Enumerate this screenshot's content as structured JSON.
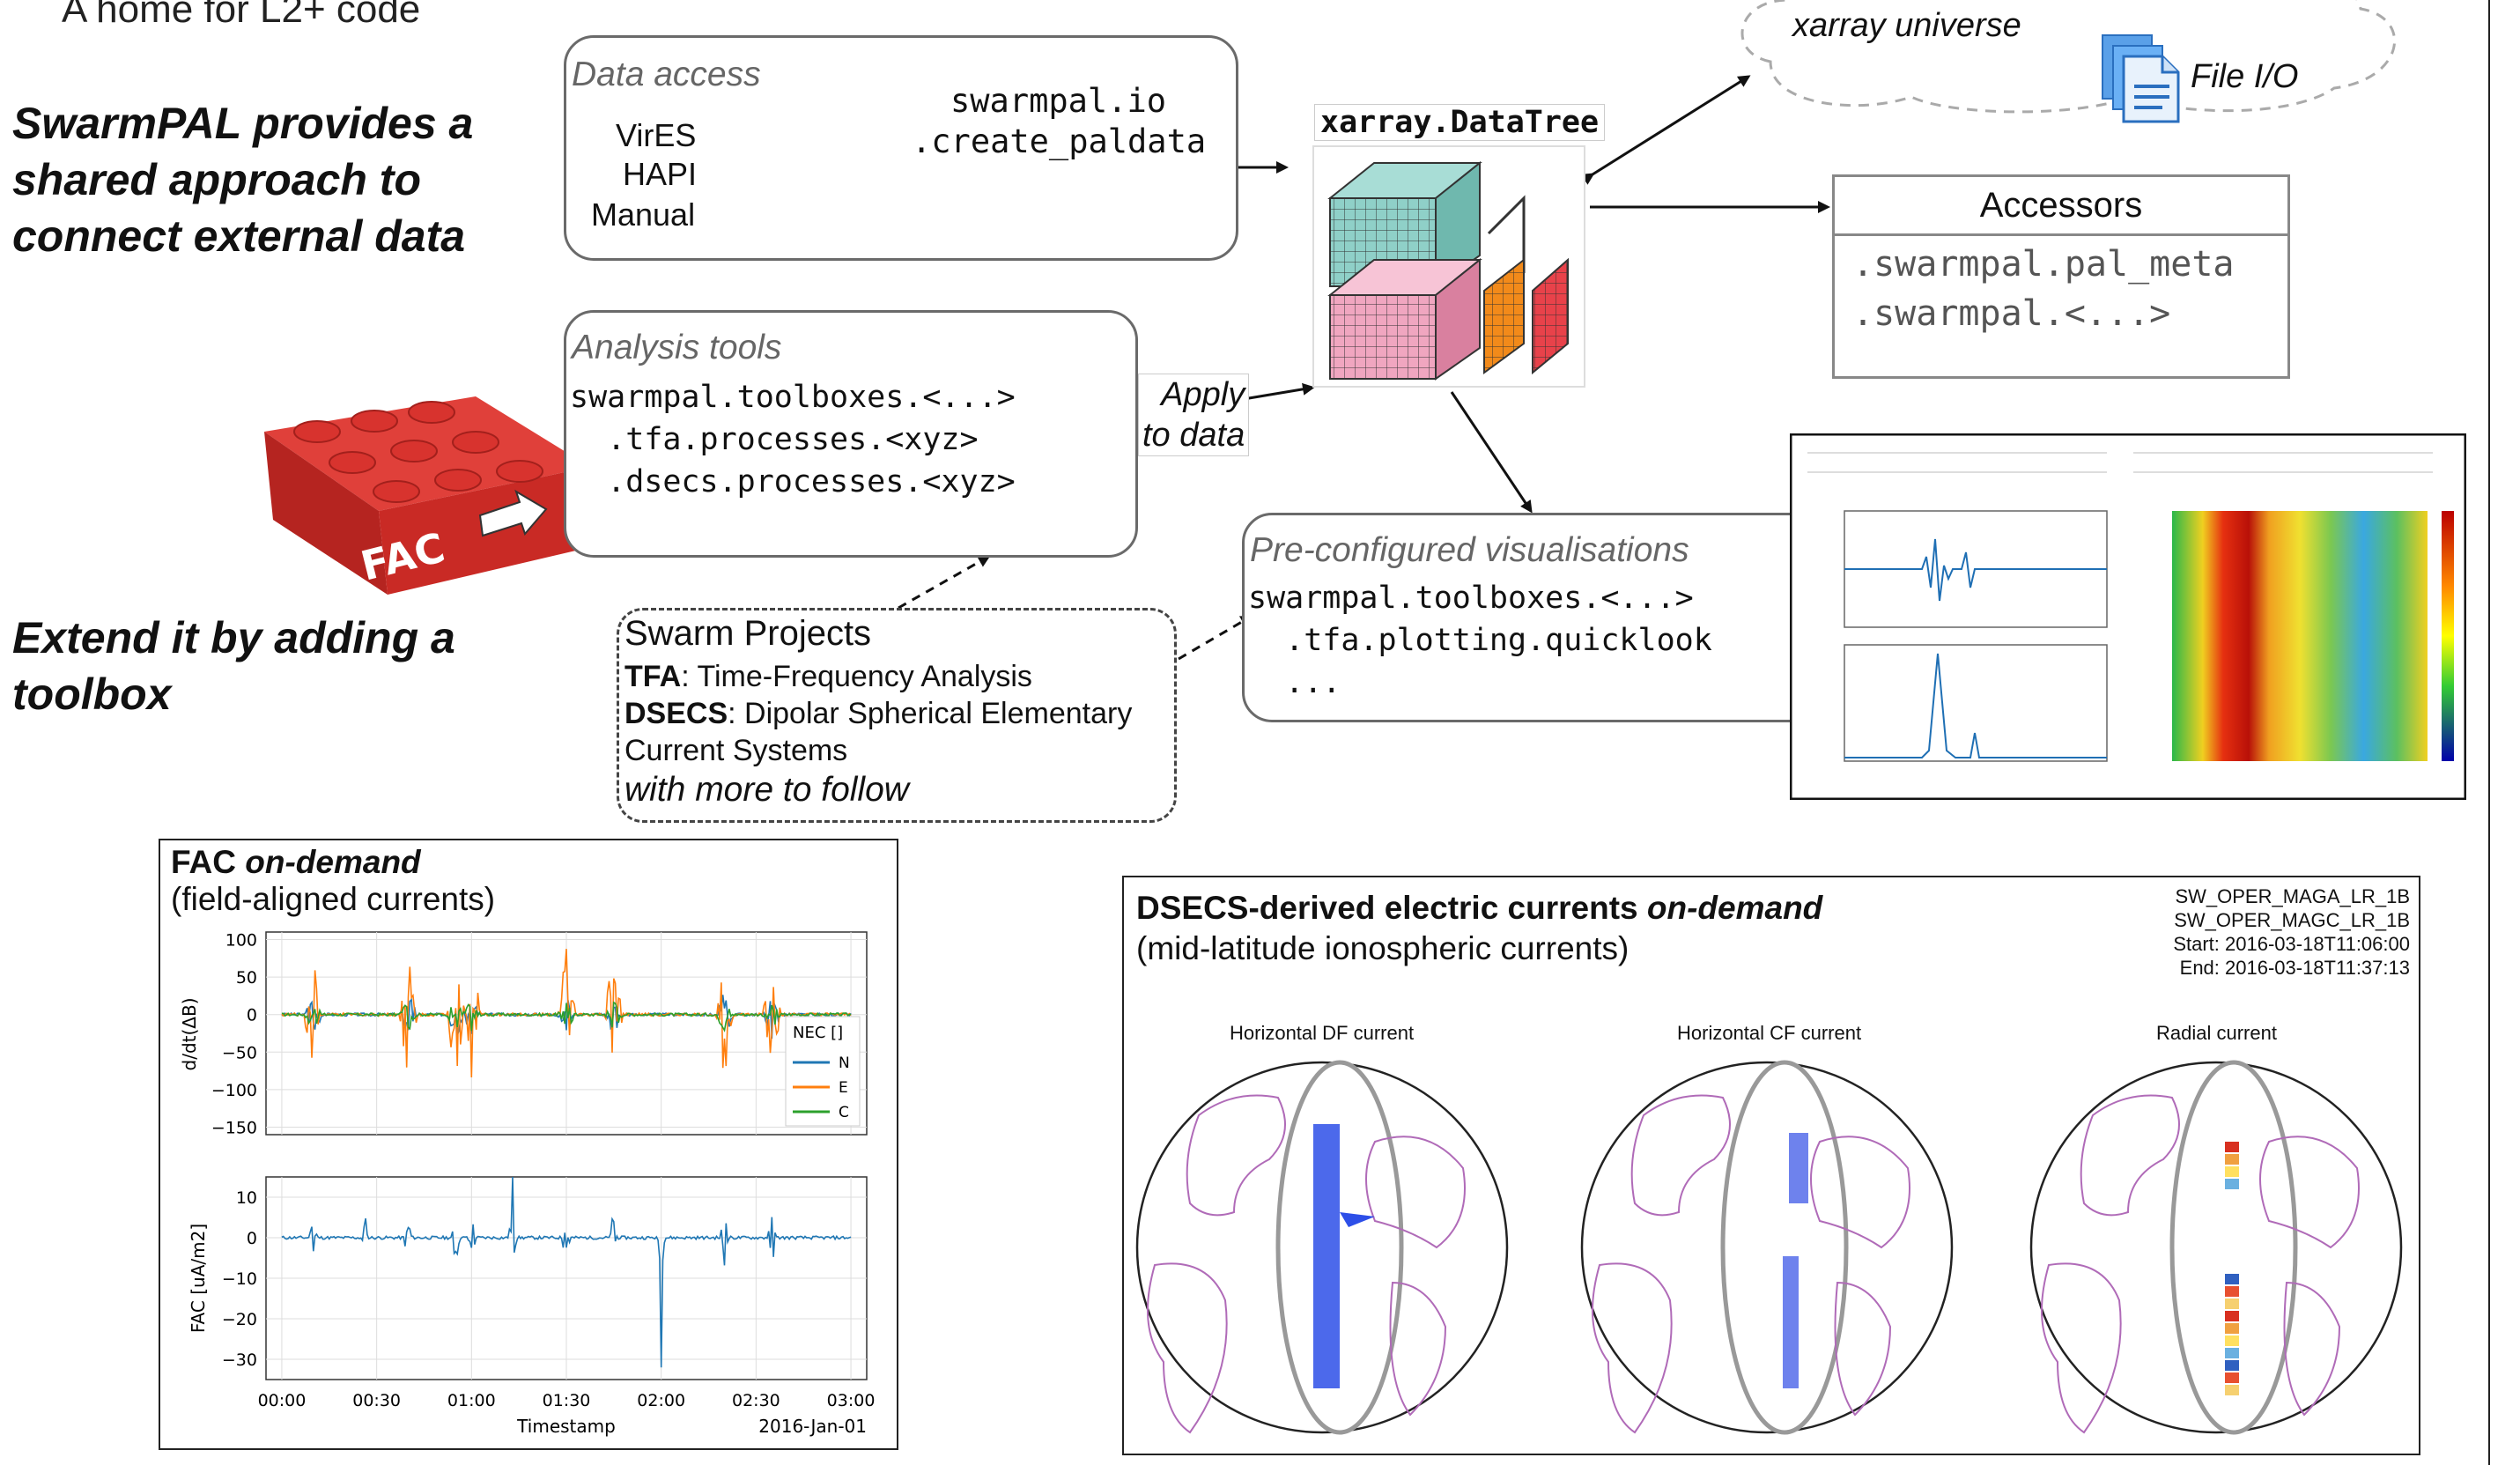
{
  "left": {
    "top_line": "A home for L2+ code",
    "headline1": [
      "SwarmPAL provides a",
      "shared approach to",
      "connect external data"
    ],
    "headline2": [
      "Extend it by adding a",
      "toolbox"
    ],
    "brick_label": "FAC"
  },
  "data_access": {
    "title": "Data access",
    "sources": [
      "VirES",
      "HAPI",
      "Manual"
    ],
    "code": [
      "swarmpal.io",
      ".create_paldata"
    ]
  },
  "datatree": {
    "title": "xarray.DataTree"
  },
  "universe": {
    "label": "xarray universe",
    "file_io": "File I/O"
  },
  "accessors": {
    "title": "Accessors",
    "items": [
      ".swarmpal.pal_meta",
      ".swarmpal.<...>"
    ]
  },
  "analysis": {
    "title": "Analysis tools",
    "code": [
      "swarmpal.toolboxes.<...>",
      "  .tfa.processes.<xyz>",
      "  .dsecs.processes.<xyz>"
    ],
    "apply": [
      "Apply",
      "to data"
    ]
  },
  "projects": {
    "title": "Swarm Projects",
    "tfa_key": "TFA",
    "tfa_text": ": Time-Frequency Analysis",
    "dsecs_key": "DSECS",
    "dsecs_text": ": Dipolar Spherical Elementary",
    "dsecs_text2": "Current Systems",
    "more": "with more to follow"
  },
  "visualisations": {
    "title": "Pre-configured visualisations",
    "code": [
      "swarmpal.toolboxes.<...>",
      "  .tfa.plotting.quicklook",
      "  ..."
    ]
  },
  "fac": {
    "title_bold": "FAC ",
    "title_italic": "on-demand",
    "subtitle": "(field-aligned currents)"
  },
  "dsecs_fig": {
    "title_bold": "DSECS-derived electric currents ",
    "title_italic": "on-demand",
    "subtitle": "(mid-latitude ionospheric currents)",
    "meta": [
      "SW_OPER_MAGA_LR_1B",
      "SW_OPER_MAGC_LR_1B",
      "Start: 2016-03-18T11:06:00",
      "End: 2016-03-18T11:37:13"
    ],
    "globes": [
      "Horizontal DF current",
      "Horizontal CF current",
      "Radial current"
    ]
  },
  "chart_data": [
    {
      "type": "line",
      "panel": "top",
      "ylabel": "d/dt(ΔB)",
      "ylim": [
        -160,
        110
      ],
      "yticks": [
        "100",
        "50",
        "0",
        "−50",
        "−100",
        "−150"
      ],
      "legend_title": "NEC []",
      "legend_placement": "right",
      "series": [
        {
          "name": "N",
          "color": "#1f77b4"
        },
        {
          "name": "E",
          "color": "#ff7f0e"
        },
        {
          "name": "C",
          "color": "#2ca02c"
        }
      ],
      "spikes_minutes": [
        10,
        40,
        55,
        60,
        90,
        105,
        140,
        155
      ],
      "grid": true
    },
    {
      "type": "line",
      "panel": "bottom",
      "ylabel": "FAC [uA/m2]",
      "ylim": [
        -35,
        15
      ],
      "yticks": [
        "10",
        "0",
        "−10",
        "−20",
        "−30"
      ],
      "xlabel": "Timestamp",
      "xticks": [
        "00:00",
        "00:30",
        "01:00",
        "01:30",
        "02:00",
        "02:30",
        "03:00"
      ],
      "date_label": "2016-Jan-01",
      "color": "#1f77b4",
      "spikes_minutes": [
        10,
        26,
        40,
        55,
        60,
        73,
        90,
        105,
        120,
        140,
        155
      ],
      "grid": true
    }
  ],
  "colors": {
    "box_border": "#6a6a6a",
    "cube_teal": "#8fd0c8",
    "cube_pink": "#f0a6c0",
    "orange": "#f28a1a",
    "red": "#e8424a",
    "brick": "#d8322e",
    "globe_line": "#b06bb8",
    "blue": "#1f6fd6"
  }
}
